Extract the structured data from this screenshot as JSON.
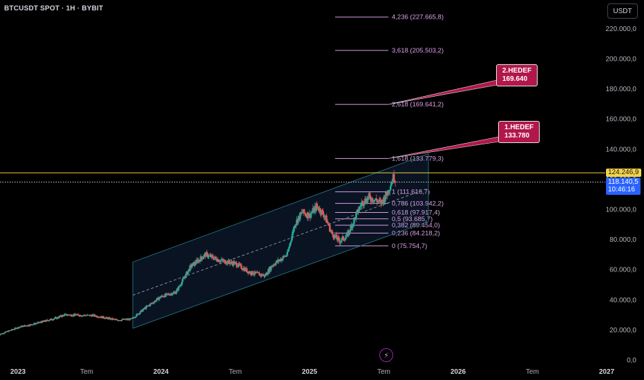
{
  "header": {
    "symbol": "BTCUSDT SPOT · 1H · BYBIT"
  },
  "currency_button": "USDT",
  "colors": {
    "background": "#000000",
    "candle_up": "#26a69a",
    "candle_down": "#ef5350",
    "channel": "#1e6d7a",
    "fib": "#d9a1e6",
    "last_price_line": "#f5d347",
    "target_box": "#b2174a"
  },
  "price_tags": {
    "last_price": "124.246,9",
    "current_price": "118.140,5",
    "countdown": "10:46:16"
  },
  "targets": [
    {
      "title": "2.HEDEF",
      "value": "169.640"
    },
    {
      "title": "1.HEDEF",
      "value": "133.780"
    }
  ],
  "chart_data": {
    "type": "candlestick",
    "y_axis": {
      "ticks": [
        0,
        20000,
        40000,
        60000,
        80000,
        100000,
        120000,
        140000,
        160000,
        180000,
        200000,
        220000
      ],
      "tick_labels": [
        "0,0",
        "20.000,0",
        "40.000,0",
        "60.000,0",
        "80.000,0",
        "100.000,0",
        "120.000,0",
        "140.000,0",
        "160.000,0",
        "180.000,0",
        "200.000,0",
        "220.000,0"
      ],
      "range": [
        0,
        240000
      ]
    },
    "x_axis": {
      "range": [
        2023.0,
        2027.0
      ],
      "ticks": [
        2023.0,
        2023.5,
        2024.0,
        2024.5,
        2025.0,
        2025.5,
        2026.0,
        2026.5,
        2027.0
      ],
      "tick_labels": [
        "2023",
        "Tem",
        "2024",
        "Tem",
        "2025",
        "Tem",
        "2026",
        "Tem",
        "2027"
      ]
    },
    "price_path": [
      [
        2022.9,
        16500
      ],
      [
        2023.05,
        22000
      ],
      [
        2023.15,
        24000
      ],
      [
        2023.3,
        28000
      ],
      [
        2023.35,
        30000
      ],
      [
        2023.55,
        29500
      ],
      [
        2023.7,
        26500
      ],
      [
        2023.8,
        27000
      ],
      [
        2023.9,
        35000
      ],
      [
        2024.0,
        42000
      ],
      [
        2024.1,
        45000
      ],
      [
        2024.2,
        62000
      ],
      [
        2024.3,
        70000
      ],
      [
        2024.4,
        66000
      ],
      [
        2024.5,
        64000
      ],
      [
        2024.6,
        58000
      ],
      [
        2024.7,
        56000
      ],
      [
        2024.75,
        63000
      ],
      [
        2024.85,
        70000
      ],
      [
        2024.9,
        90000
      ],
      [
        2024.95,
        98000
      ],
      [
        2025.0,
        96000
      ],
      [
        2025.05,
        102000
      ],
      [
        2025.1,
        96000
      ],
      [
        2025.15,
        84000
      ],
      [
        2025.2,
        79000
      ],
      [
        2025.25,
        82000
      ],
      [
        2025.3,
        93000
      ],
      [
        2025.35,
        104000
      ],
      [
        2025.4,
        108000
      ],
      [
        2025.45,
        106000
      ],
      [
        2025.48,
        104000
      ],
      [
        2025.52,
        110000
      ],
      [
        2025.55,
        118000
      ],
      [
        2025.57,
        122500
      ],
      [
        2025.58,
        118140
      ]
    ],
    "fibonacci": {
      "levels": [
        {
          "ratio": "0",
          "price": 75754.7,
          "label": "0 (75.754,7)"
        },
        {
          "ratio": "0,236",
          "price": 84218.2,
          "label": "0,236 (84.218,2)"
        },
        {
          "ratio": "0,382",
          "price": 89454.0,
          "label": "0,382 (89.454,0)"
        },
        {
          "ratio": "0,5",
          "price": 93685.7,
          "label": "0,5 (93.685,7)"
        },
        {
          "ratio": "0,618",
          "price": 97917.4,
          "label": "0,618 (97.917,4)"
        },
        {
          "ratio": "0,786",
          "price": 103942.2,
          "label": "0,786 (103.942,2)"
        },
        {
          "ratio": "1",
          "price": 111616.7,
          "label": "1 (111.616,7)"
        },
        {
          "ratio": "1,618",
          "price": 133779.3,
          "label": "1,618 (133.779,3)"
        },
        {
          "ratio": "2,618",
          "price": 169641.2,
          "label": "2,618 (169.641,2)"
        },
        {
          "ratio": "3,618",
          "price": 205503.2,
          "label": "3,618 (205.503,2)"
        },
        {
          "ratio": "4,236",
          "price": 227665.8,
          "label": "4,236 (227.665,8)"
        }
      ]
    },
    "channel": {
      "x_start": 2023.81,
      "x_end": 2025.8,
      "lower": [
        21000,
        92000
      ],
      "mid": [
        43000,
        114000
      ],
      "upper": [
        65000,
        137000
      ]
    },
    "last_price": 124246.9,
    "current_price": 118140.5
  }
}
